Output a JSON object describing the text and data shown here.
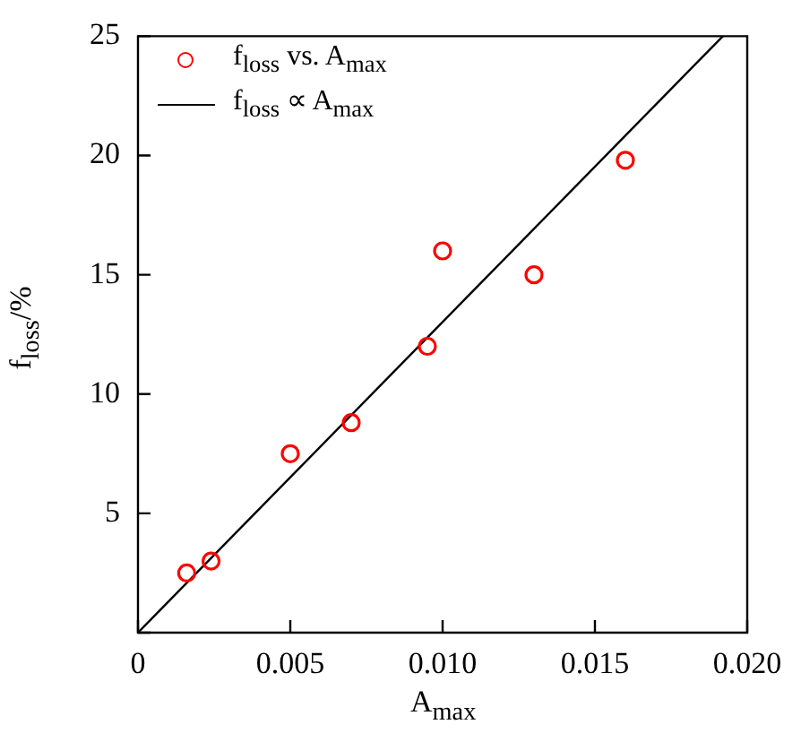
{
  "chart_data": {
    "type": "scatter",
    "xlabel": "A$_{max}$",
    "ylabel": "f$_{loss}$/%",
    "xlim": [
      0,
      0.02
    ],
    "xticks": [
      0,
      0.005,
      {
        "value": 0.01,
        "label": "0.010"
      },
      0.015,
      {
        "value": 0.02,
        "label": "0.020"
      }
    ],
    "ylim": [
      0,
      25
    ],
    "yticks": [
      {
        "value": 0,
        "label": null
      },
      5,
      10,
      15,
      20,
      25
    ],
    "grid": false,
    "legend": "top left",
    "marker": "circle",
    "series": [
      {
        "name": "f$_{loss}$ vs. A$_{max}$",
        "color": "#ff0000",
        "x": [
          0.0016,
          0.0024,
          0.005,
          0.007,
          0.0095,
          0.01,
          0.013,
          0.016
        ],
        "values": [
          2.5,
          3,
          7.5,
          8.8,
          12,
          16,
          15,
          19.8
        ]
      },
      {
        "name": "f$_{loss}$ ∝ A$_{max}$",
        "type": "line",
        "color": "#000000",
        "marker": "none",
        "line_style": "solid",
        "x": [
          0,
          0.0192
        ],
        "values": [
          0,
          25
        ]
      }
    ]
  }
}
